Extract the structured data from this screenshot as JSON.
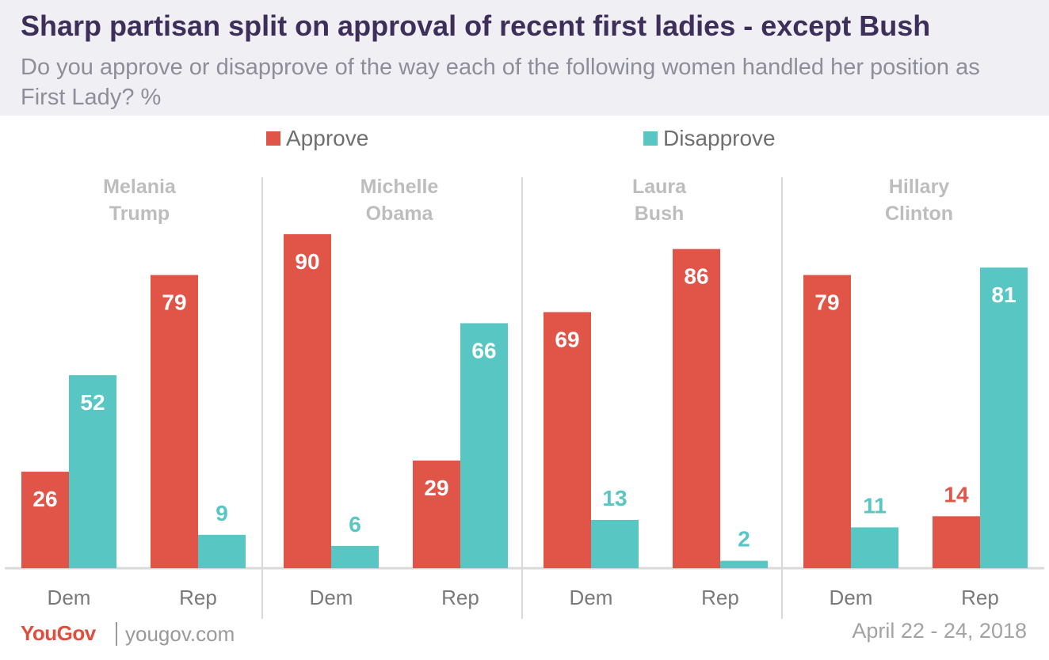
{
  "title": "Sharp partisan split on approval of recent first ladies - except Bush",
  "subtitle": "Do you approve or disapprove of the way each of the following women handled her position as First Lady? %",
  "footer": {
    "brand": "YouGov",
    "url": "yougov.com",
    "date": "April 22 - 24, 2018"
  },
  "colors": {
    "approve": "#e05548",
    "disapprove": "#58c6c3",
    "panel_title": "#bdbdbd",
    "axis_label": "#7a7a7a"
  },
  "chart_data": {
    "type": "bar",
    "legend_position": "top",
    "grid": false,
    "ylim": [
      0,
      100
    ],
    "series_names": [
      "Approve",
      "Disapprove"
    ],
    "panels": [
      {
        "title": [
          "Melania",
          "Trump"
        ],
        "groups": [
          {
            "label": "Dem",
            "approve": 26,
            "disapprove": 52
          },
          {
            "label": "Rep",
            "approve": 79,
            "disapprove": 9
          }
        ]
      },
      {
        "title": [
          "Michelle",
          "Obama"
        ],
        "groups": [
          {
            "label": "Dem",
            "approve": 90,
            "disapprove": 6
          },
          {
            "label": "Rep",
            "approve": 29,
            "disapprove": 66
          }
        ]
      },
      {
        "title": [
          "Laura",
          "Bush"
        ],
        "groups": [
          {
            "label": "Dem",
            "approve": 69,
            "disapprove": 13
          },
          {
            "label": "Rep",
            "approve": 86,
            "disapprove": 2
          }
        ]
      },
      {
        "title": [
          "Hillary",
          "Clinton"
        ],
        "groups": [
          {
            "label": "Dem",
            "approve": 79,
            "disapprove": 11
          },
          {
            "label": "Rep",
            "approve": 14,
            "disapprove": 81
          }
        ]
      }
    ]
  }
}
